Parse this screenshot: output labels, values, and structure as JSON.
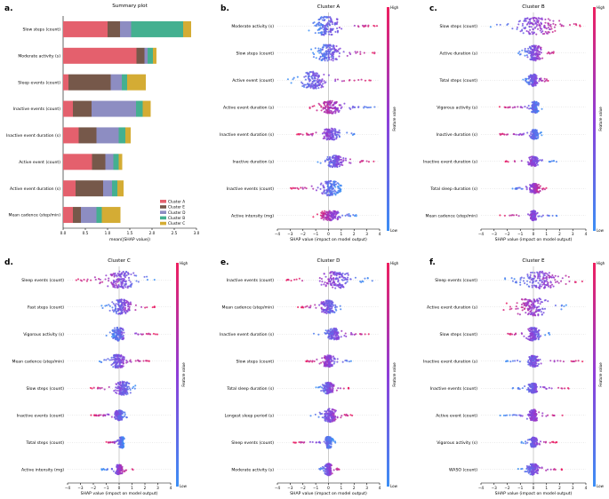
{
  "chart_data": [
    {
      "panel": "a.",
      "type": "bar",
      "orientation": "horizontal-stacked",
      "title": "Summary plot",
      "xlabel": "mean(|SHAP value|)",
      "xlim": [
        0,
        3.0
      ],
      "xticks": [
        "0.0",
        "0.5",
        "1.0",
        "1.5",
        "2.0",
        "2.5",
        "3.0"
      ],
      "categories": [
        "Slow steps (count)",
        "Moderate activity (s)",
        "Sleep events (count)",
        "Inactive events (count)",
        "Inactive event duration (s)",
        "Active event (count)",
        "Active event duration (s)",
        "Mean cadence (step/min)"
      ],
      "series": [
        {
          "name": "Cluster A",
          "color": "#e4606d",
          "values": [
            1.0,
            1.65,
            0.12,
            0.22,
            0.35,
            0.65,
            0.28,
            0.22
          ]
        },
        {
          "name": "Cluster E",
          "color": "#76584a",
          "values": [
            0.28,
            0.18,
            0.95,
            0.42,
            0.4,
            0.3,
            0.62,
            0.18
          ]
        },
        {
          "name": "Cluster D",
          "color": "#8d8dc2",
          "values": [
            0.25,
            0.07,
            0.25,
            1.0,
            0.5,
            0.18,
            0.2,
            0.35
          ]
        },
        {
          "name": "Cluster B",
          "color": "#44b090",
          "values": [
            1.17,
            0.12,
            0.12,
            0.15,
            0.15,
            0.12,
            0.12,
            0.12
          ]
        },
        {
          "name": "Cluster C",
          "color": "#d4ac34",
          "values": [
            0.18,
            0.08,
            0.42,
            0.18,
            0.12,
            0.08,
            0.14,
            0.42
          ]
        }
      ],
      "legend": [
        "Cluster A",
        "Cluster E",
        "Cluster D",
        "Cluster B",
        "Cluster C"
      ],
      "legend_position": "bottom-right"
    },
    {
      "panel": "b.",
      "type": "scatter",
      "subtype": "beeswarm",
      "title": "Cluster A",
      "xlabel": "SHAP value (impact on model output)",
      "xlim": [
        -4,
        4
      ],
      "xticks": [
        "−4",
        "−3",
        "−2",
        "−1",
        "0",
        "1",
        "2",
        "3",
        "4"
      ],
      "colorbar": {
        "label": "Feature value",
        "high": "High",
        "low": "Low"
      },
      "features": [
        {
          "name": "Moderate activity (s)",
          "lo": -1.6,
          "hi": 4.0,
          "c": -0.2,
          "w": 1.0,
          "th": 10,
          "dir": 1
        },
        {
          "name": "Slow steps (count)",
          "lo": -1.4,
          "hi": 3.9,
          "c": -0.1,
          "w": 1.0,
          "th": 9,
          "dir": 1
        },
        {
          "name": "Active event (count)",
          "lo": -3.2,
          "hi": 3.5,
          "c": -1.2,
          "w": 1.0,
          "th": 9,
          "dir": 1
        },
        {
          "name": "Active event duration (s)",
          "lo": -1.8,
          "hi": 3.8,
          "c": 0.2,
          "w": 0.8,
          "th": 7,
          "dir": -1
        },
        {
          "name": "Inactive event duration (s)",
          "lo": -2.5,
          "hi": 2.2,
          "c": 0.2,
          "w": 0.7,
          "th": 6,
          "dir": -1
        },
        {
          "name": "Inactive duration (s)",
          "lo": -1.2,
          "hi": 3.6,
          "c": 0.5,
          "w": 0.7,
          "th": 6,
          "dir": 1
        },
        {
          "name": "Inactive events (count)",
          "lo": -3.0,
          "hi": 1.0,
          "c": 0.2,
          "w": 0.8,
          "th": 8,
          "dir": -1
        },
        {
          "name": "Active intensity (mg)",
          "lo": -1.2,
          "hi": 2.2,
          "c": 0.1,
          "w": 0.8,
          "th": 5,
          "dir": -1
        }
      ]
    },
    {
      "panel": "c.",
      "type": "scatter",
      "subtype": "beeswarm",
      "title": "Cluster B",
      "xlabel": "SHAP value (impact on model output)",
      "xlim": [
        -4,
        4
      ],
      "xticks": [
        "−4",
        "−3",
        "−2",
        "−1",
        "0",
        "1",
        "2",
        "3",
        "4"
      ],
      "colorbar": {
        "label": "Feature value",
        "high": "High",
        "low": "Low"
      },
      "features": [
        {
          "name": "Slow steps (count)",
          "lo": -3.6,
          "hi": 3.7,
          "c": 0.2,
          "w": 1.6,
          "th": 9,
          "dir": 1
        },
        {
          "name": "Active duration (s)",
          "lo": -1.2,
          "hi": 1.8,
          "c": 0.1,
          "w": 0.6,
          "th": 8,
          "dir": 1
        },
        {
          "name": "Total steps (count)",
          "lo": -0.8,
          "hi": 1.4,
          "c": 0.0,
          "w": 0.4,
          "th": 6,
          "dir": 1
        },
        {
          "name": "Vigorous activity (s)",
          "lo": -2.6,
          "hi": 0.8,
          "c": 0.1,
          "w": 0.3,
          "th": 6,
          "dir": -1
        },
        {
          "name": "Inactive duration (s)",
          "lo": -2.6,
          "hi": 0.8,
          "c": 0.1,
          "w": 0.3,
          "th": 5,
          "dir": -1
        },
        {
          "name": "Inactive event duration (s)",
          "lo": -2.2,
          "hi": 1.8,
          "c": 0.0,
          "w": 0.4,
          "th": 5,
          "dir": -1
        },
        {
          "name": "Total sleep duration (s)",
          "lo": -1.6,
          "hi": 1.2,
          "c": 0.1,
          "w": 0.4,
          "th": 5,
          "dir": 1
        },
        {
          "name": "Mean cadence (step/min)",
          "lo": -2.6,
          "hi": 2.1,
          "c": 0.0,
          "w": 0.3,
          "th": 5,
          "dir": -1
        }
      ]
    },
    {
      "panel": "d.",
      "type": "scatter",
      "subtype": "beeswarm",
      "title": "Cluster C",
      "xlabel": "SHAP value (impact on model output)",
      "xlim": [
        -4,
        4
      ],
      "xticks": [
        "−4",
        "−3",
        "−2",
        "−1",
        "0",
        "1",
        "2",
        "3",
        "4"
      ],
      "colorbar": {
        "label": "Feature value",
        "high": "High",
        "low": "Low"
      },
      "features": [
        {
          "name": "Sleep events (count)",
          "lo": -3.4,
          "hi": 2.8,
          "c": 0.2,
          "w": 1.2,
          "th": 9,
          "dir": -1
        },
        {
          "name": "Fast steps (count)",
          "lo": -1.4,
          "hi": 2.8,
          "c": 0.2,
          "w": 0.7,
          "th": 8,
          "dir": 1
        },
        {
          "name": "Vigorous activity (s)",
          "lo": -1.0,
          "hi": 3.0,
          "c": -0.1,
          "w": 0.5,
          "th": 7,
          "dir": 1
        },
        {
          "name": "Mean cadence (step/min)",
          "lo": -1.6,
          "hi": 2.4,
          "c": -0.1,
          "w": 0.6,
          "th": 7,
          "dir": 1
        },
        {
          "name": "Slow steps (count)",
          "lo": -2.4,
          "hi": 1.6,
          "c": 0.3,
          "w": 0.6,
          "th": 7,
          "dir": -1
        },
        {
          "name": "Inactive events (count)",
          "lo": -2.2,
          "hi": 1.0,
          "c": 0.0,
          "w": 0.4,
          "th": 5,
          "dir": -1
        },
        {
          "name": "Total steps (count)",
          "lo": -1.0,
          "hi": 0.4,
          "c": 0.2,
          "w": 0.2,
          "th": 6,
          "dir": -1
        },
        {
          "name": "Active intensity (mg)",
          "lo": -1.4,
          "hi": 1.2,
          "c": 0.0,
          "w": 0.3,
          "th": 5,
          "dir": 1
        }
      ]
    },
    {
      "panel": "e.",
      "type": "scatter",
      "subtype": "beeswarm",
      "title": "Cluster D",
      "xlabel": "SHAP value (impact on model output)",
      "xlim": [
        -4,
        4
      ],
      "xticks": [
        "−4",
        "−3",
        "−2",
        "−1",
        "0",
        "1",
        "2",
        "3",
        "4"
      ],
      "colorbar": {
        "label": "Feature value",
        "high": "High",
        "low": "Low"
      },
      "features": [
        {
          "name": "Inactive events (count)",
          "lo": -3.4,
          "hi": 3.5,
          "c": 0.6,
          "w": 1.2,
          "th": 9,
          "dir": -1
        },
        {
          "name": "Mean cadence (step/min)",
          "lo": -2.4,
          "hi": 1.2,
          "c": 0.0,
          "w": 0.6,
          "th": 7,
          "dir": -1
        },
        {
          "name": "Inactive event duration (s)",
          "lo": -1.2,
          "hi": 3.5,
          "c": 0.4,
          "w": 0.6,
          "th": 6,
          "dir": 1
        },
        {
          "name": "Slow steps (count)",
          "lo": -1.8,
          "hi": 1.8,
          "c": 0.0,
          "w": 0.5,
          "th": 6,
          "dir": -1
        },
        {
          "name": "Total sleep duration (s)",
          "lo": -1.0,
          "hi": 1.6,
          "c": 0.0,
          "w": 0.4,
          "th": 6,
          "dir": 1
        },
        {
          "name": "Longest sleep period (s)",
          "lo": -1.4,
          "hi": 2.0,
          "c": 0.1,
          "w": 0.5,
          "th": 7,
          "dir": 1
        },
        {
          "name": "Sleep events (count)",
          "lo": -2.8,
          "hi": 0.6,
          "c": 0.0,
          "w": 0.3,
          "th": 6,
          "dir": -1
        },
        {
          "name": "Moderate activity (s)",
          "lo": -0.8,
          "hi": 1.0,
          "c": 0.0,
          "w": 0.3,
          "th": 6,
          "dir": 1
        }
      ]
    },
    {
      "panel": "f.",
      "type": "scatter",
      "subtype": "beeswarm",
      "title": "Cluster E",
      "xlabel": "SHAP value (impact on model output)",
      "xlim": [
        -4,
        4
      ],
      "xticks": [
        "−4",
        "−3",
        "−2",
        "−1",
        "0",
        "1",
        "2",
        "3",
        "4"
      ],
      "colorbar": {
        "label": "Feature value",
        "high": "High",
        "low": "Low"
      },
      "features": [
        {
          "name": "Sleep events (count)",
          "lo": -2.2,
          "hi": 4.0,
          "c": 0.6,
          "w": 1.4,
          "th": 9,
          "dir": 1
        },
        {
          "name": "Active event duration (s)",
          "lo": -2.4,
          "hi": 2.8,
          "c": -0.1,
          "w": 1.2,
          "th": 10,
          "dir": -1
        },
        {
          "name": "Slow steps (count)",
          "lo": -2.0,
          "hi": 1.4,
          "c": 0.0,
          "w": 0.5,
          "th": 7,
          "dir": -1
        },
        {
          "name": "Inactive event duration (s)",
          "lo": -2.2,
          "hi": 3.8,
          "c": 0.0,
          "w": 0.4,
          "th": 6,
          "dir": 1
        },
        {
          "name": "Inactive events (count)",
          "lo": -1.6,
          "hi": 3.0,
          "c": 0.0,
          "w": 0.4,
          "th": 5,
          "dir": 1
        },
        {
          "name": "Active event (count)",
          "lo": -2.6,
          "hi": 2.6,
          "c": 0.0,
          "w": 0.4,
          "th": 6,
          "dir": 1
        },
        {
          "name": "Vigorous activity (s)",
          "lo": -1.0,
          "hi": 1.8,
          "c": 0.0,
          "w": 0.3,
          "th": 5,
          "dir": 1
        },
        {
          "name": "WASO (count)",
          "lo": -1.2,
          "hi": 2.2,
          "c": 0.0,
          "w": 0.4,
          "th": 6,
          "dir": 1
        }
      ]
    }
  ],
  "colors": {
    "low": "#3c8ff5",
    "mid": "#8d3ed8",
    "high": "#ee1f5f"
  }
}
